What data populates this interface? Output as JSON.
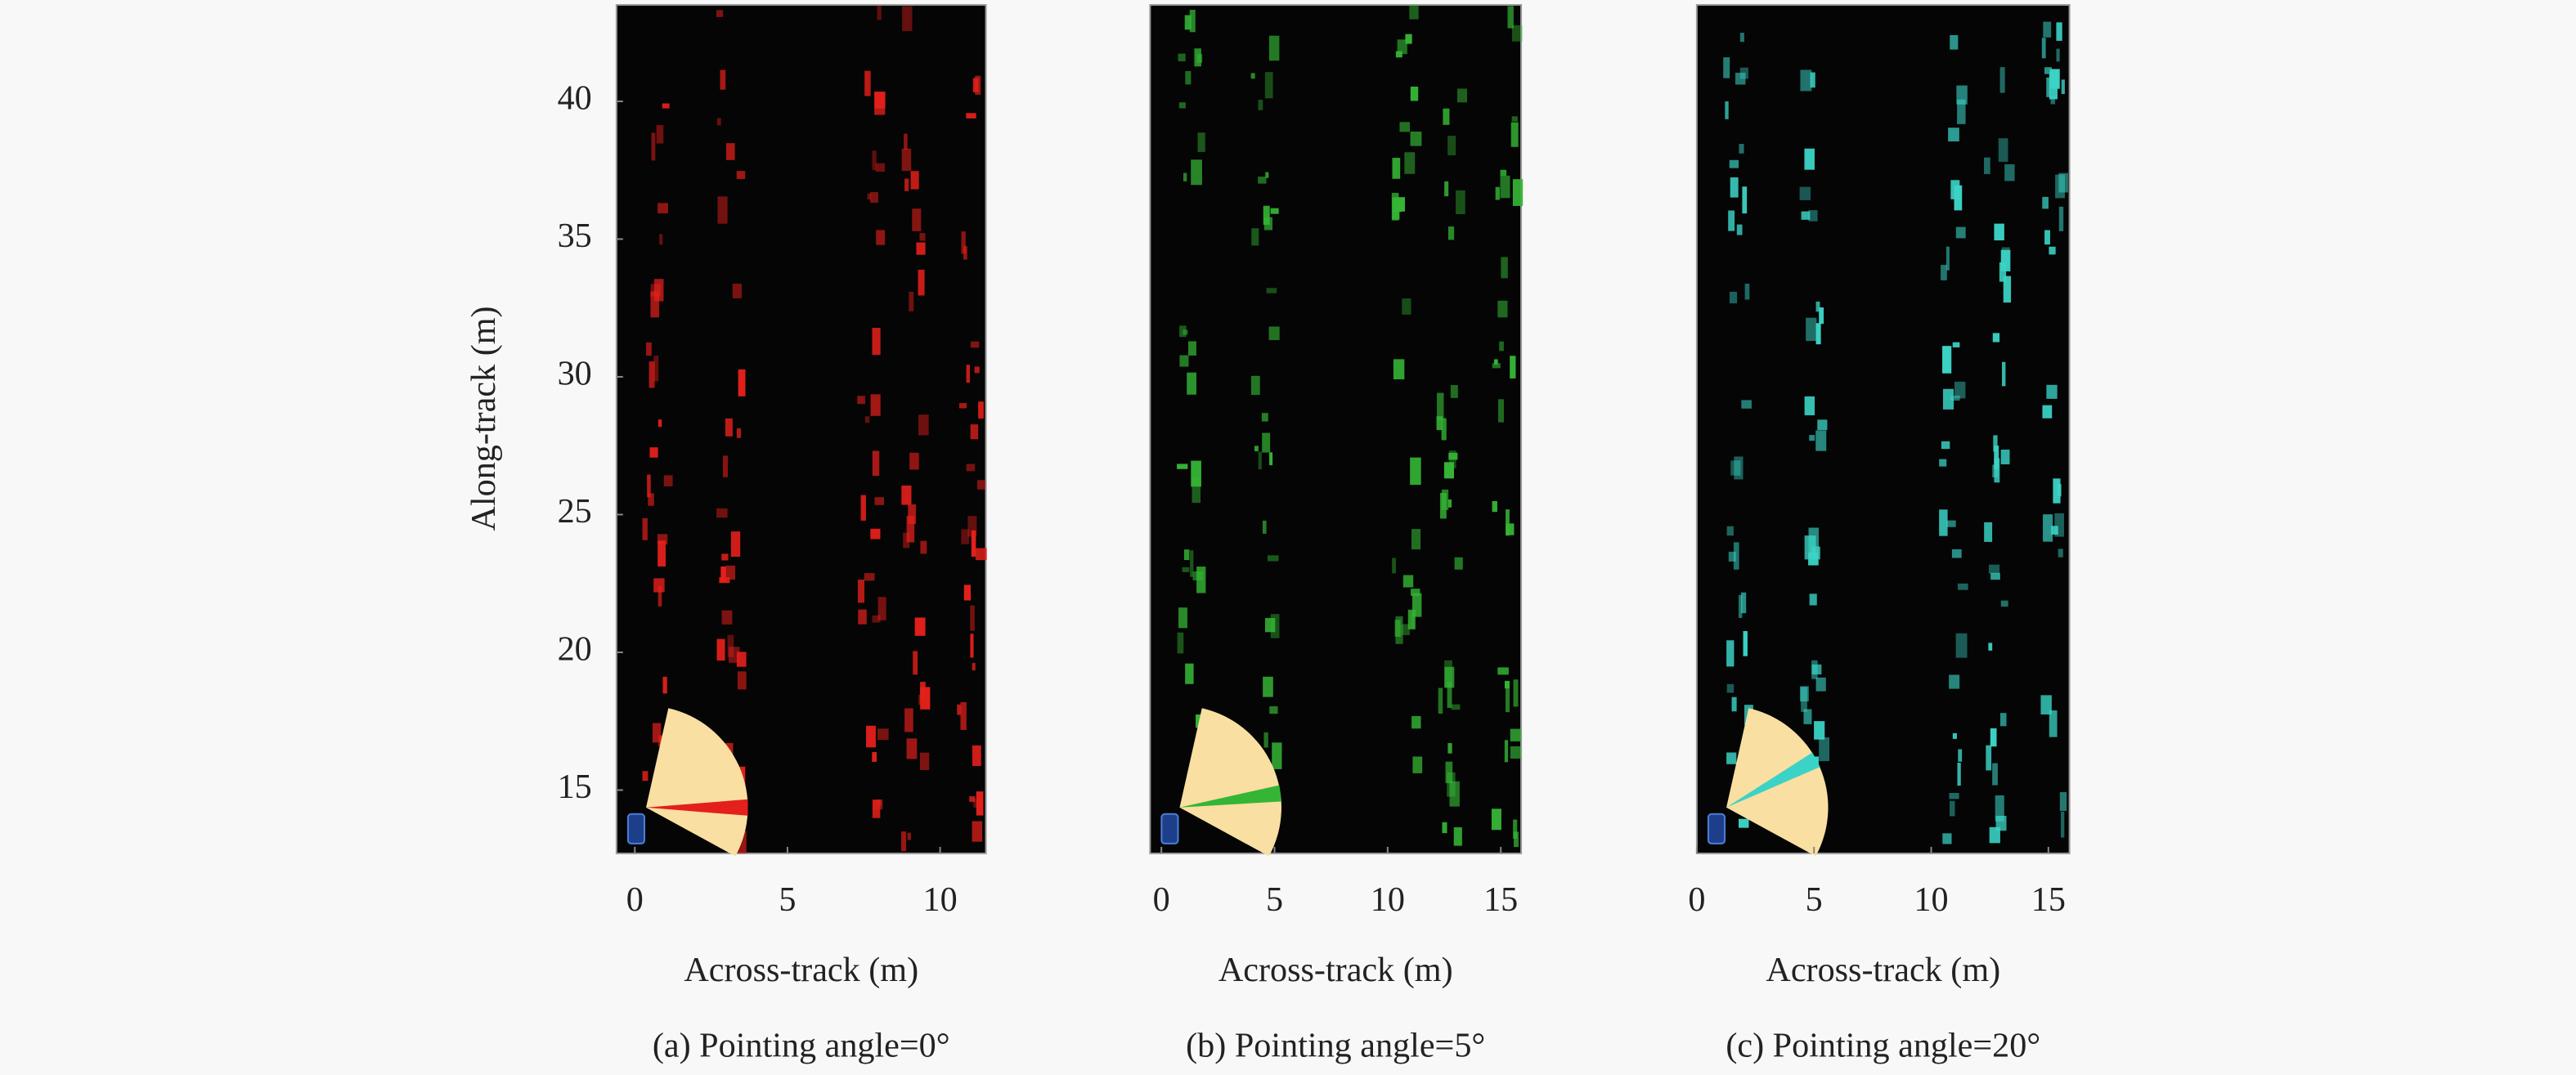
{
  "chart_data": [
    {
      "type": "image",
      "caption": "(a) Pointing angle=0°",
      "xlabel": "Across-track (m)",
      "ylabel": "Along-track (m)",
      "xlim": [
        -0.6,
        11.5
      ],
      "xticks": [
        0,
        5,
        10
      ],
      "ylim": [
        12.7,
        43.5
      ],
      "yticks": [
        15,
        20,
        25,
        30,
        35,
        40
      ],
      "color": "#e3201b"
    },
    {
      "type": "image",
      "caption": "(b) Pointing angle=5°",
      "xlabel": "Across-track (m)",
      "xlim": [
        -0.5,
        15.9
      ],
      "xticks": [
        0,
        5,
        10,
        15
      ],
      "ylim": [
        12.7,
        43.5
      ],
      "color": "#35b535"
    },
    {
      "type": "image",
      "caption": "(c) Pointing angle=20°",
      "xlabel": "Across-track (m)",
      "xlim": [
        0,
        15.9
      ],
      "xticks": [
        0,
        5,
        10,
        15
      ],
      "ylim": [
        12.7,
        43.5
      ],
      "color": "#3bd3c6"
    }
  ]
}
